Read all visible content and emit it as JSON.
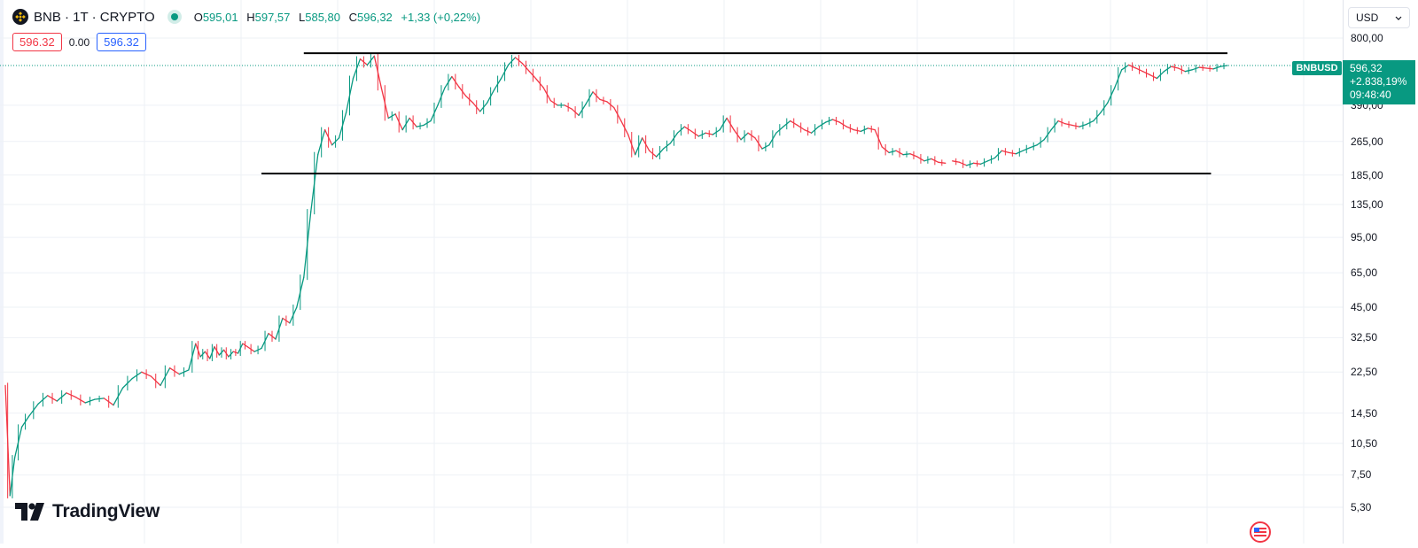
{
  "header": {
    "symbol_title": "BNB · 1T · CRYPTO",
    "symbol_icon": "bnb-logo-icon",
    "ohlc": {
      "open_label": "O",
      "open": "595,01",
      "high_label": "H",
      "high": "597,57",
      "low_label": "L",
      "low": "585,80",
      "close_label": "C",
      "close": "596,32",
      "change": "+1,33 (+0,22%)"
    }
  },
  "quote": {
    "bid": "596.32",
    "spread": "0.00",
    "ask": "596.32"
  },
  "currency_selector": {
    "label": "USD"
  },
  "price_tag": {
    "price": "596,32",
    "change_pct": "+2.838,19%",
    "countdown": "09:48:40"
  },
  "symbol_tag": {
    "label": "BNBUSD"
  },
  "branding": {
    "name": "TradingView"
  },
  "colors": {
    "up": "#089981",
    "down": "#f23645",
    "grid": "#eef1f6",
    "line": "#000000"
  },
  "chart_data": {
    "type": "line",
    "scale": "log",
    "ylim": [
      5.0,
      850
    ],
    "yticks": [
      {
        "value": 800,
        "label": "800,00"
      },
      {
        "value": 390,
        "label": "390,00"
      },
      {
        "value": 265,
        "label": "265,00"
      },
      {
        "value": 185,
        "label": "185,00"
      },
      {
        "value": 135,
        "label": "135,00"
      },
      {
        "value": 95,
        "label": "95,00"
      },
      {
        "value": 65,
        "label": "65,00"
      },
      {
        "value": 45,
        "label": "45,00"
      },
      {
        "value": 32.5,
        "label": "32,50"
      },
      {
        "value": 22.5,
        "label": "22,50"
      },
      {
        "value": 14.5,
        "label": "14,50"
      },
      {
        "value": 10.5,
        "label": "10,50"
      },
      {
        "value": 7.5,
        "label": "7,50"
      },
      {
        "value": 5.3,
        "label": "5,30"
      }
    ],
    "grid": true,
    "series": [
      {
        "x": [
          0,
          2,
          4,
          7,
          10,
          14,
          18,
          22,
          26,
          30,
          34,
          38,
          42,
          46,
          50,
          54,
          58,
          62,
          66,
          70,
          74,
          78,
          81,
          83,
          85,
          87,
          89,
          91,
          93,
          95,
          97,
          99,
          101,
          103,
          106,
          109,
          112,
          115,
          118,
          121,
          124,
          127,
          130,
          133,
          136,
          139,
          142,
          145,
          148,
          151,
          154,
          157,
          160,
          163,
          166,
          169,
          172,
          175,
          178,
          181,
          184,
          187,
          190,
          193,
          196,
          199,
          202,
          205,
          208,
          211,
          214,
          217,
          220,
          223,
          226,
          229,
          232,
          235,
          238,
          241,
          244,
          247,
          250,
          253,
          256,
          259,
          262,
          265,
          268,
          271,
          274,
          277,
          280,
          283,
          286,
          289,
          292,
          295,
          298,
          301,
          304,
          307,
          310,
          313,
          316,
          319,
          322,
          325,
          328,
          331,
          334,
          337,
          340,
          343,
          346,
          349,
          352,
          355,
          358,
          361,
          364,
          367,
          370,
          373,
          376,
          379,
          382,
          385,
          388,
          391,
          394,
          397,
          400
        ],
        "y": [
          19.5,
          6.0,
          9.0,
          12.5,
          14.0,
          16.0,
          17.5,
          16.5,
          18.0,
          17.2,
          16.2,
          16.8,
          17.0,
          15.8,
          19.0,
          21.0,
          22.5,
          21.5,
          19.5,
          23.5,
          22.0,
          23.0,
          30.5,
          26.5,
          28.0,
          26.0,
          29.5,
          27.0,
          28.5,
          26.5,
          28.0,
          27.5,
          30.5,
          29.5,
          28.0,
          29.0,
          34.0,
          32.0,
          40.0,
          38.0,
          45.0,
          62.0,
          125.0,
          230.0,
          300.0,
          255.0,
          275.0,
          360.0,
          520.0,
          640.0,
          600.0,
          660.0,
          470.0,
          340.0,
          355.0,
          300.0,
          340.0,
          310.0,
          315.0,
          330.0,
          390.0,
          470.0,
          530.0,
          475.0,
          430.0,
          400.0,
          365.0,
          400.0,
          460.0,
          520.0,
          600.0,
          650.0,
          610.0,
          560.0,
          515.0,
          470.0,
          410.0,
          390.0,
          390.0,
          375.0,
          350.0,
          395.0,
          450.0,
          415.0,
          405.0,
          380.0,
          330.0,
          285.0,
          230.0,
          275.0,
          240.0,
          225.0,
          245.0,
          260.0,
          290.0,
          310.0,
          295.0,
          280.0,
          290.0,
          285.0,
          300.0,
          340.0,
          300.0,
          270.0,
          290.0,
          275.0,
          245.0,
          255.0,
          290.0,
          310.0,
          330.0,
          315.0,
          300.0,
          290.0,
          310.0,
          325.0,
          335.0,
          325.0,
          310.0,
          300.0,
          295.0,
          305.0,
          300.0,
          250.0,
          235.0,
          240.0,
          230.0,
          232.0,
          225.0,
          215.0,
          220.0,
          212.0,
          210.0
        ]
      },
      {
        "x": [
          403,
          406,
          409,
          412,
          415,
          418,
          421,
          424,
          427,
          430,
          433,
          436,
          439,
          442,
          445,
          448,
          451,
          454,
          457,
          460,
          463,
          466,
          469,
          472,
          475,
          478,
          481,
          484,
          487,
          490,
          493,
          496,
          499,
          502,
          505,
          508,
          511,
          514,
          517,
          520
        ],
        "y": [
          215.0,
          212.0,
          205.0,
          210.0,
          208.0,
          215.0,
          222.0,
          240.0,
          235.0,
          232.0,
          240.0,
          248.0,
          255.0,
          270.0,
          300.0,
          330.0,
          320.0,
          315.0,
          310.0,
          318.0,
          330.0,
          360.0,
          400.0,
          470.0,
          570.0,
          600.0,
          580.0,
          560.0,
          540.0,
          520.0,
          560.0,
          590.0,
          580.0,
          560.0,
          570.0,
          585.0,
          580.0,
          575.0,
          590.0,
          596.32
        ]
      }
    ],
    "annotations": [
      {
        "type": "horizontal-line",
        "value": 680,
        "x_start": 127,
        "x_end": 520
      },
      {
        "type": "horizontal-line",
        "value": 188,
        "x_start": 109,
        "x_end": 513
      }
    ],
    "current_price": 596.32
  }
}
